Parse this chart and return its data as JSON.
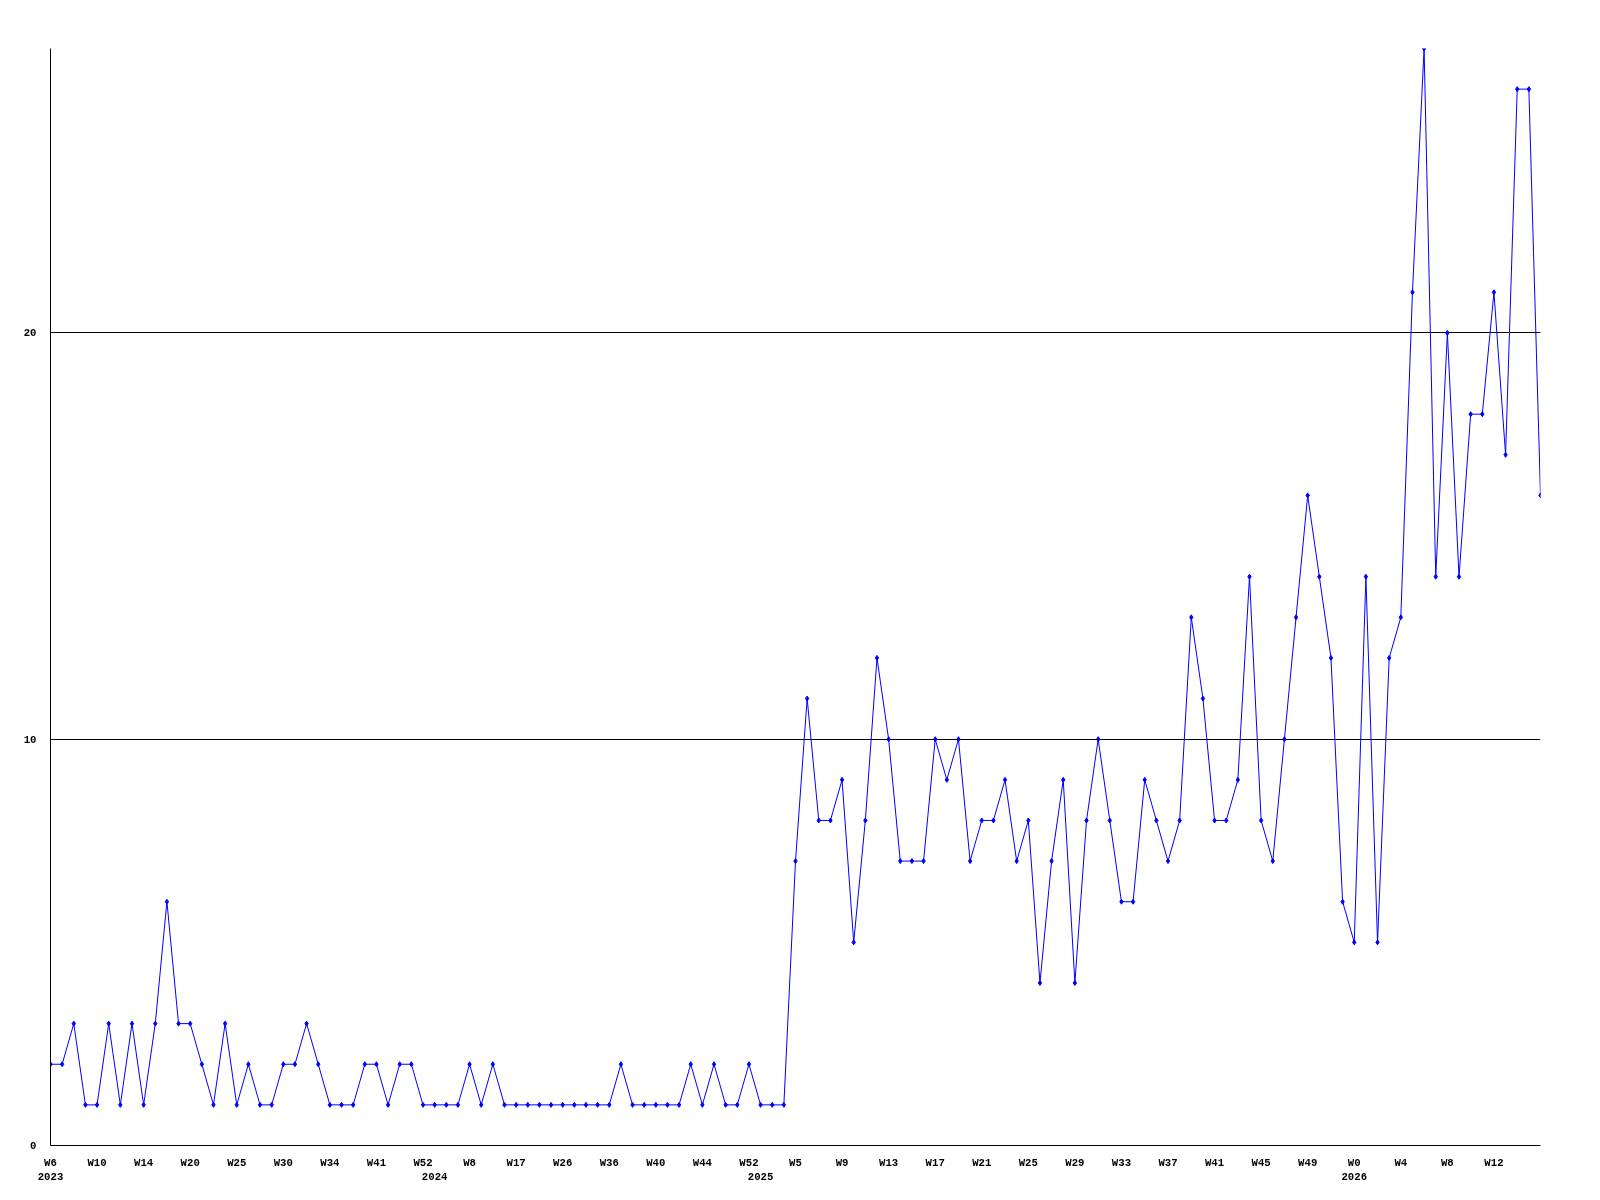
{
  "chart_data": {
    "type": "line",
    "categories": [
      "W6\n2023",
      null,
      null,
      null,
      "W10",
      null,
      null,
      null,
      "W14",
      null,
      null,
      null,
      "W20",
      null,
      null,
      null,
      "W25",
      null,
      null,
      null,
      "W30",
      null,
      null,
      null,
      "W34",
      null,
      null,
      null,
      "W41",
      null,
      null,
      null,
      "W52",
      "\n2024",
      null,
      null,
      "W8",
      null,
      null,
      null,
      "W17",
      null,
      null,
      null,
      "W26",
      null,
      null,
      null,
      "W36",
      null,
      null,
      null,
      "W40",
      null,
      null,
      null,
      "W44",
      null,
      null,
      null,
      "W52",
      "\n2025",
      null,
      null,
      "W5",
      null,
      null,
      null,
      "W9",
      null,
      null,
      null,
      "W13",
      null,
      null,
      null,
      "W17",
      null,
      null,
      null,
      "W21",
      null,
      null,
      null,
      "W25",
      null,
      null,
      null,
      "W29",
      null,
      null,
      null,
      "W33",
      null,
      null,
      null,
      "W37",
      null,
      null,
      null,
      "W41",
      null,
      null,
      null,
      "W45",
      null,
      null,
      null,
      "W49",
      null,
      null,
      null,
      "W0\n2026",
      null,
      null,
      null,
      "W4",
      null,
      null,
      null,
      "W8",
      null,
      null,
      null,
      "W12",
      null,
      null,
      null,
      null
    ],
    "series": [
      {
        "color": "#0000ff",
        "values": [
          2,
          2,
          3,
          1,
          1,
          3,
          1,
          3,
          1,
          3,
          6,
          3,
          3,
          2,
          1,
          3,
          1,
          2,
          1,
          1,
          2,
          2,
          3,
          2,
          1,
          1,
          1,
          2,
          2,
          1,
          2,
          2,
          1,
          1,
          1,
          1,
          2,
          1,
          2,
          1,
          1,
          1,
          1,
          1,
          1,
          1,
          1,
          1,
          1,
          2,
          1,
          1,
          1,
          1,
          1,
          2,
          1,
          2,
          1,
          1,
          2,
          1,
          1,
          1,
          7,
          11,
          8,
          8,
          9,
          5,
          8,
          12,
          10,
          7,
          7,
          7,
          10,
          9,
          10,
          7,
          8,
          8,
          9,
          7,
          8,
          4,
          7,
          9,
          4,
          8,
          10,
          8,
          6,
          6,
          9,
          8,
          7,
          8,
          13,
          11,
          8,
          8,
          9,
          14,
          8,
          7,
          10,
          13,
          16,
          14,
          12,
          6,
          5,
          14,
          5,
          12,
          13,
          21,
          27,
          14,
          20,
          14,
          18,
          18,
          21,
          17,
          26,
          26,
          16
        ]
      }
    ],
    "ylim": [
      0,
      27
    ],
    "yticks": [
      0,
      10,
      20
    ],
    "grid": "y",
    "marker": "diamond",
    "line_style": "solid"
  }
}
